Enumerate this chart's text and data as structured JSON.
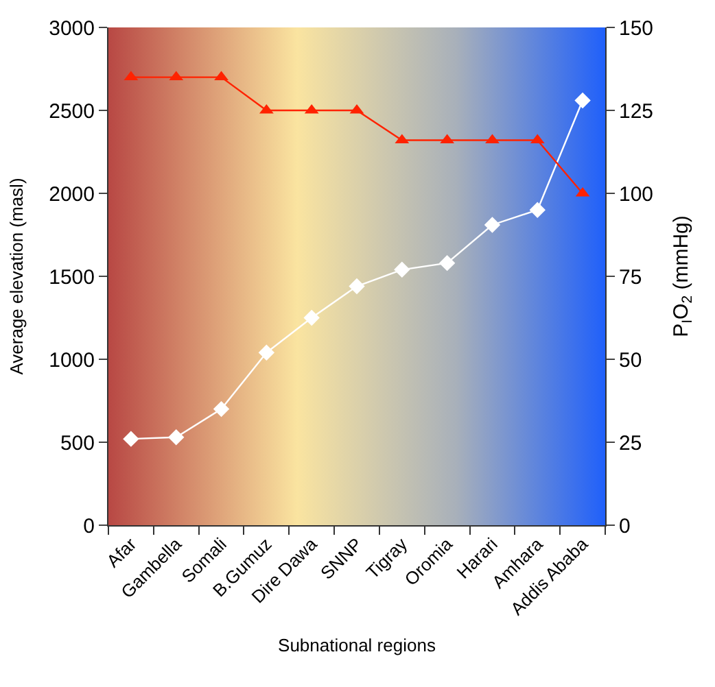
{
  "chart_data": {
    "type": "line",
    "xlabel": "Subnational regions",
    "ylabel": "Average elevation (masl)",
    "y2label": "P$_{I}$O$_{2}$ (mmHg)",
    "categories": [
      "Afar",
      "Gambella",
      "Somali",
      "B.Gumuz",
      "Dire Dawa",
      "SNNP",
      "Tigray",
      "Oromia",
      "Harari",
      "Amhara",
      "Addis Ababa"
    ],
    "series": [
      {
        "color": "#ffffff",
        "marker": "diamond",
        "values": [
          520,
          530,
          700,
          1040,
          1250,
          1440,
          1540,
          1580,
          1810,
          1900,
          2560
        ]
      },
      {
        "color": "#ff2200",
        "marker": "triangle",
        "axis": "y2",
        "values": [
          135,
          135,
          135,
          125,
          125,
          125,
          116,
          116,
          116,
          116,
          100
        ]
      }
    ],
    "ylim": [
      0,
      3000
    ],
    "yticks": [
      0,
      500,
      1000,
      1500,
      2000,
      2500,
      3000
    ],
    "y2lim": [
      0,
      150
    ],
    "y2ticks": [
      0,
      25,
      50,
      75,
      100,
      125,
      150
    ]
  }
}
